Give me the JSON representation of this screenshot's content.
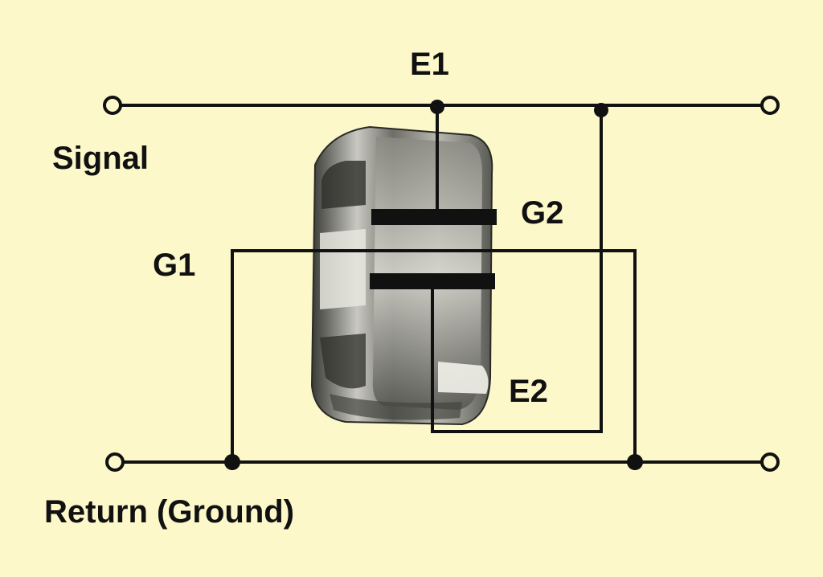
{
  "labels": {
    "e1": "E1",
    "signal": "Signal",
    "g2": "G2",
    "g1": "G1",
    "e2": "E2",
    "return": "Return (Ground)"
  },
  "colors": {
    "background": "#fcf8c9",
    "wire": "#111111"
  }
}
